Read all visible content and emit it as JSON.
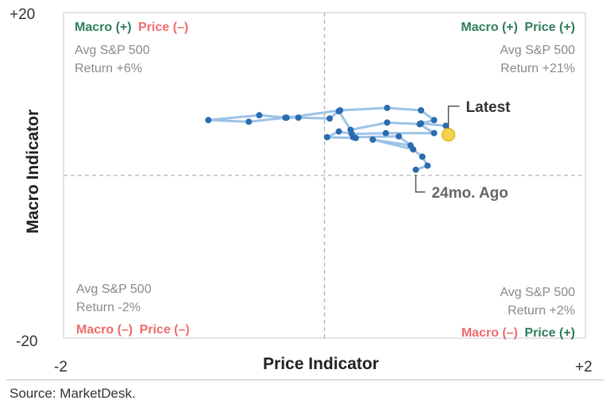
{
  "chart_data": {
    "type": "scatter",
    "xlabel": "Price Indicator",
    "ylabel": "Macro Indicator",
    "xlim": [
      -2,
      2
    ],
    "ylim": [
      -20,
      20
    ],
    "x_tick_labels": [
      "-2",
      "+2"
    ],
    "y_tick_labels": [
      "+20",
      "-20"
    ],
    "grid": false,
    "reference_lines": {
      "x": 0,
      "y": 0,
      "style": "dashed",
      "color": "#b0b0b0"
    },
    "colors": {
      "point": "#2b6cb0",
      "path": "#9cc3e6",
      "latest_point": "#f3d34a",
      "latest_point_stroke": "#e0b62a",
      "positive": "#2e7d5b",
      "negative": "#ef6b6b",
      "quadrant_text": "#8a8a8a",
      "annotation_dark": "#333333",
      "annotation_gray": "#666666"
    },
    "points": [
      {
        "x": 0.7,
        "y": 0.7
      },
      {
        "x": 0.79,
        "y": 1.2
      },
      {
        "x": 0.75,
        "y": 2.3
      },
      {
        "x": 0.68,
        "y": 3.2
      },
      {
        "x": 0.37,
        "y": 4.4
      },
      {
        "x": 0.66,
        "y": 3.7
      },
      {
        "x": 0.57,
        "y": 4.8
      },
      {
        "x": 0.22,
        "y": 4.7
      },
      {
        "x": 0.24,
        "y": 4.6
      },
      {
        "x": 0.02,
        "y": 4.7
      },
      {
        "x": 0.11,
        "y": 5.4
      },
      {
        "x": 0.21,
        "y": 5.1
      },
      {
        "x": 0.47,
        "y": 5.2
      },
      {
        "x": 0.84,
        "y": 5.2
      },
      {
        "x": 0.73,
        "y": 6.3
      },
      {
        "x": 0.73,
        "y": 6.3
      },
      {
        "x": 0.48,
        "y": 6.5
      },
      {
        "x": 0.2,
        "y": 5.6
      },
      {
        "x": 0.11,
        "y": 7.9
      },
      {
        "x": 0.04,
        "y": 7.0
      },
      {
        "x": -0.2,
        "y": 7.1
      },
      {
        "x": -0.3,
        "y": 7.1
      },
      {
        "x": -0.58,
        "y": 6.6
      },
      {
        "x": -0.89,
        "y": 6.8
      },
      {
        "x": -0.5,
        "y": 7.4
      },
      {
        "x": -0.29,
        "y": 7.1
      },
      {
        "x": 0.12,
        "y": 8.0
      },
      {
        "x": 0.48,
        "y": 8.3
      },
      {
        "x": 0.74,
        "y": 8.0
      },
      {
        "x": 0.84,
        "y": 6.8
      },
      {
        "x": 0.74,
        "y": 6.4
      },
      {
        "x": 0.93,
        "y": 6.1
      },
      {
        "x": 0.95,
        "y": 5.0
      }
    ],
    "annotations": [
      {
        "label": "Latest",
        "x": 0.95,
        "y": 5.0
      },
      {
        "label": "24mo. Ago",
        "x": 0.7,
        "y": 0.7
      }
    ],
    "quadrants": {
      "top_left": {
        "macro": "Macro (+)",
        "price": "Price (–)",
        "line1": "Avg S&P 500",
        "line2": "Return +6%"
      },
      "top_right": {
        "macro": "Macro (+)",
        "price": "Price (+)",
        "line1": "Avg S&P 500",
        "line2": "Return +21%"
      },
      "bottom_left": {
        "macro": "Macro (–)",
        "price": "Price (–)",
        "line1": "Avg S&P 500",
        "line2": "Return -2%"
      },
      "bottom_right": {
        "macro": "Macro (–)",
        "price": "Price (+)",
        "line1": "Avg S&P 500",
        "line2": "Return +2%"
      }
    }
  },
  "source": "Source: MarketDesk."
}
